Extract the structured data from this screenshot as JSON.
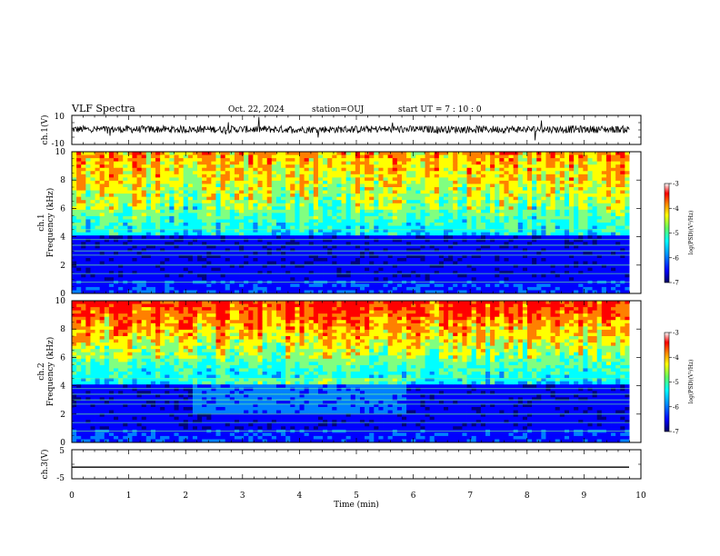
{
  "header": {
    "title": "VLF Spectra",
    "date": "Oct. 22, 2024",
    "station": "station=OUJ",
    "start": "start  UT =   7 : 10 : 0"
  },
  "chart_data": [
    {
      "type": "line",
      "ylabel": "ch.1(V)",
      "ylim": [
        -10,
        10
      ],
      "yticks": [
        "10",
        "-10"
      ],
      "x_range_min": [
        0,
        9.8
      ],
      "description": "noisy waveform around 0 V"
    },
    {
      "type": "heatmap",
      "ylabel_channel": "ch.1",
      "ylabel": "Frequency (kHz)",
      "ylim": [
        0,
        10
      ],
      "yticks": [
        "0",
        "2",
        "4",
        "6",
        "8",
        "10"
      ],
      "colorbar": {
        "ticks": [
          "-3",
          "-4",
          "-5",
          "-6",
          "-7"
        ],
        "label": "log(PSD)(V²/Hz)",
        "range": [
          -7,
          -3
        ]
      }
    },
    {
      "type": "heatmap",
      "ylabel_channel": "ch.2",
      "ylabel": "Frequency (kHz)",
      "ylim": [
        0,
        10
      ],
      "yticks": [
        "0",
        "2",
        "4",
        "6",
        "8",
        "10"
      ],
      "colorbar": {
        "ticks": [
          "-3",
          "-4",
          "-5",
          "-6",
          "-7"
        ],
        "label": "log(PSD)(V²/Hz)",
        "range": [
          -7,
          -3
        ]
      }
    },
    {
      "type": "line",
      "ylabel": "ch.3(V)",
      "ylim": [
        -5,
        5
      ],
      "yticks": [
        "5",
        "-5"
      ],
      "constant_value": -1
    }
  ],
  "xaxis": {
    "label": "Time (min)",
    "range": [
      0,
      10
    ],
    "ticks": [
      "0",
      "1",
      "2",
      "3",
      "4",
      "5",
      "6",
      "7",
      "8",
      "9",
      "10"
    ]
  },
  "colors": {
    "colormap": [
      "#000080",
      "#0000ff",
      "#0080ff",
      "#00ffff",
      "#80ff80",
      "#ffff00",
      "#ff8000",
      "#ff0000",
      "#ffffff"
    ]
  }
}
